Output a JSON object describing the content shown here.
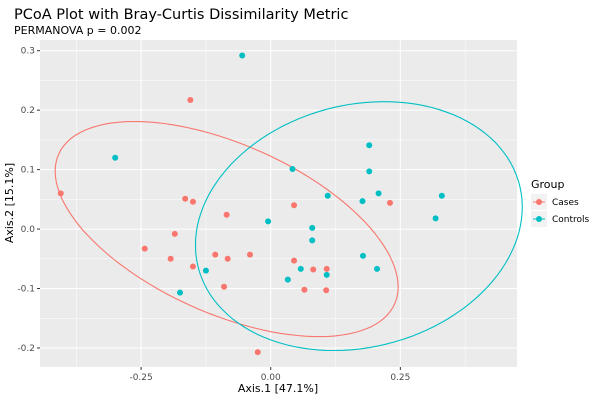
{
  "chart_data": {
    "type": "scatter",
    "title": "PCoA Plot with Bray-Curtis Dissimilarity Metric",
    "subtitle": "PERMANOVA p = 0.002",
    "xlabel": "Axis.1  [47.1%]",
    "ylabel": "Axis.2  [15.1%]",
    "xlim": [
      -0.445,
      0.475
    ],
    "ylim": [
      -0.232,
      0.318
    ],
    "xticks": [
      -0.25,
      0.0,
      0.25
    ],
    "xtick_labels": [
      "-0.25",
      "0.00",
      "0.25"
    ],
    "yticks": [
      -0.2,
      -0.1,
      0.0,
      0.1,
      0.2,
      0.3
    ],
    "ytick_labels": [
      "-0.2",
      "-0.1",
      "0.0",
      "0.1",
      "0.2",
      "0.3"
    ],
    "grid": true,
    "legend": {
      "title": "Group",
      "position": "right",
      "entries": [
        "Cases",
        "Controls"
      ]
    },
    "series": [
      {
        "name": "Cases",
        "color": "#F8766D",
        "points": [
          {
            "x": -0.405,
            "y": 0.06
          },
          {
            "x": -0.155,
            "y": 0.217
          },
          {
            "x": -0.165,
            "y": 0.051
          },
          {
            "x": -0.15,
            "y": 0.046
          },
          {
            "x": -0.085,
            "y": 0.024
          },
          {
            "x": -0.243,
            "y": -0.033
          },
          {
            "x": -0.185,
            "y": -0.008
          },
          {
            "x": -0.193,
            "y": -0.05
          },
          {
            "x": -0.15,
            "y": -0.063
          },
          {
            "x": -0.107,
            "y": -0.043
          },
          {
            "x": -0.083,
            "y": -0.05
          },
          {
            "x": -0.04,
            "y": -0.043
          },
          {
            "x": -0.09,
            "y": -0.097
          },
          {
            "x": 0.045,
            "y": 0.04
          },
          {
            "x": 0.045,
            "y": -0.053
          },
          {
            "x": 0.082,
            "y": -0.068
          },
          {
            "x": 0.108,
            "y": -0.067
          },
          {
            "x": 0.065,
            "y": -0.102
          },
          {
            "x": 0.107,
            "y": -0.103
          },
          {
            "x": 0.23,
            "y": 0.044
          },
          {
            "x": -0.025,
            "y": -0.207
          }
        ]
      },
      {
        "name": "Controls",
        "color": "#00BFC4",
        "points": [
          {
            "x": -0.055,
            "y": 0.292
          },
          {
            "x": -0.3,
            "y": 0.12
          },
          {
            "x": 0.042,
            "y": 0.101
          },
          {
            "x": 0.11,
            "y": 0.056
          },
          {
            "x": 0.19,
            "y": 0.141
          },
          {
            "x": 0.19,
            "y": 0.097
          },
          {
            "x": 0.177,
            "y": 0.047
          },
          {
            "x": 0.208,
            "y": 0.06
          },
          {
            "x": 0.33,
            "y": 0.056
          },
          {
            "x": 0.318,
            "y": 0.018
          },
          {
            "x": -0.005,
            "y": 0.013
          },
          {
            "x": 0.08,
            "y": 0.002
          },
          {
            "x": 0.08,
            "y": -0.019
          },
          {
            "x": -0.125,
            "y": -0.07
          },
          {
            "x": -0.175,
            "y": -0.107
          },
          {
            "x": 0.058,
            "y": -0.067
          },
          {
            "x": 0.033,
            "y": -0.085
          },
          {
            "x": 0.108,
            "y": -0.077
          },
          {
            "x": 0.178,
            "y": -0.045
          },
          {
            "x": 0.205,
            "y": -0.067
          }
        ]
      }
    ],
    "ellipses": [
      {
        "group": "Cases",
        "center": [
          -0.085,
          0.0
        ],
        "semi_major": 0.348,
        "semi_minor": 0.145,
        "angle_deg": -20
      },
      {
        "group": "Controls",
        "center": [
          0.17,
          0.005
        ],
        "semi_major": 0.318,
        "semi_minor": 0.205,
        "angle_deg": 10
      }
    ]
  }
}
